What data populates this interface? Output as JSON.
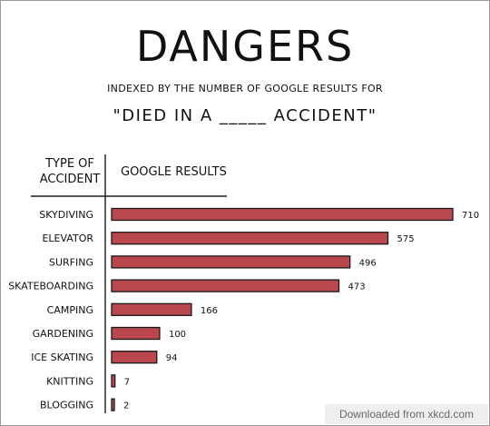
{
  "title": "DANGERS",
  "subtitle": "INDEXED BY THE NUMBER OF GOOGLE RESULTS FOR",
  "query": "\"DIED IN A _____ ACCIDENT\"",
  "column_headers": {
    "category": "TYPE OF ACCIDENT",
    "value": "GOOGLE RESULTS"
  },
  "credit": "Downloaded from xkcd.com",
  "colors": {
    "bar": "#b9474d",
    "outline": "#1a1a1a"
  },
  "chart_data": {
    "type": "bar",
    "orientation": "horizontal",
    "title": "DANGERS",
    "subtitle": "INDEXED BY THE NUMBER OF GOOGLE RESULTS FOR \"DIED IN A _____ ACCIDENT\"",
    "xlabel": "GOOGLE RESULTS",
    "ylabel": "TYPE OF ACCIDENT",
    "categories": [
      "SKYDIVING",
      "ELEVATOR",
      "SURFING",
      "SKATEBOARDING",
      "CAMPING",
      "GARDENING",
      "ICE SKATING",
      "KNITTING",
      "BLOGGING"
    ],
    "values": [
      710,
      575,
      496,
      473,
      166,
      100,
      94,
      7,
      2
    ],
    "data_labels": [
      "710",
      "575",
      "496",
      "473",
      "166",
      "100",
      "94",
      "7",
      "2"
    ],
    "xlim": [
      0,
      710
    ],
    "grid": false,
    "legend": "none"
  }
}
